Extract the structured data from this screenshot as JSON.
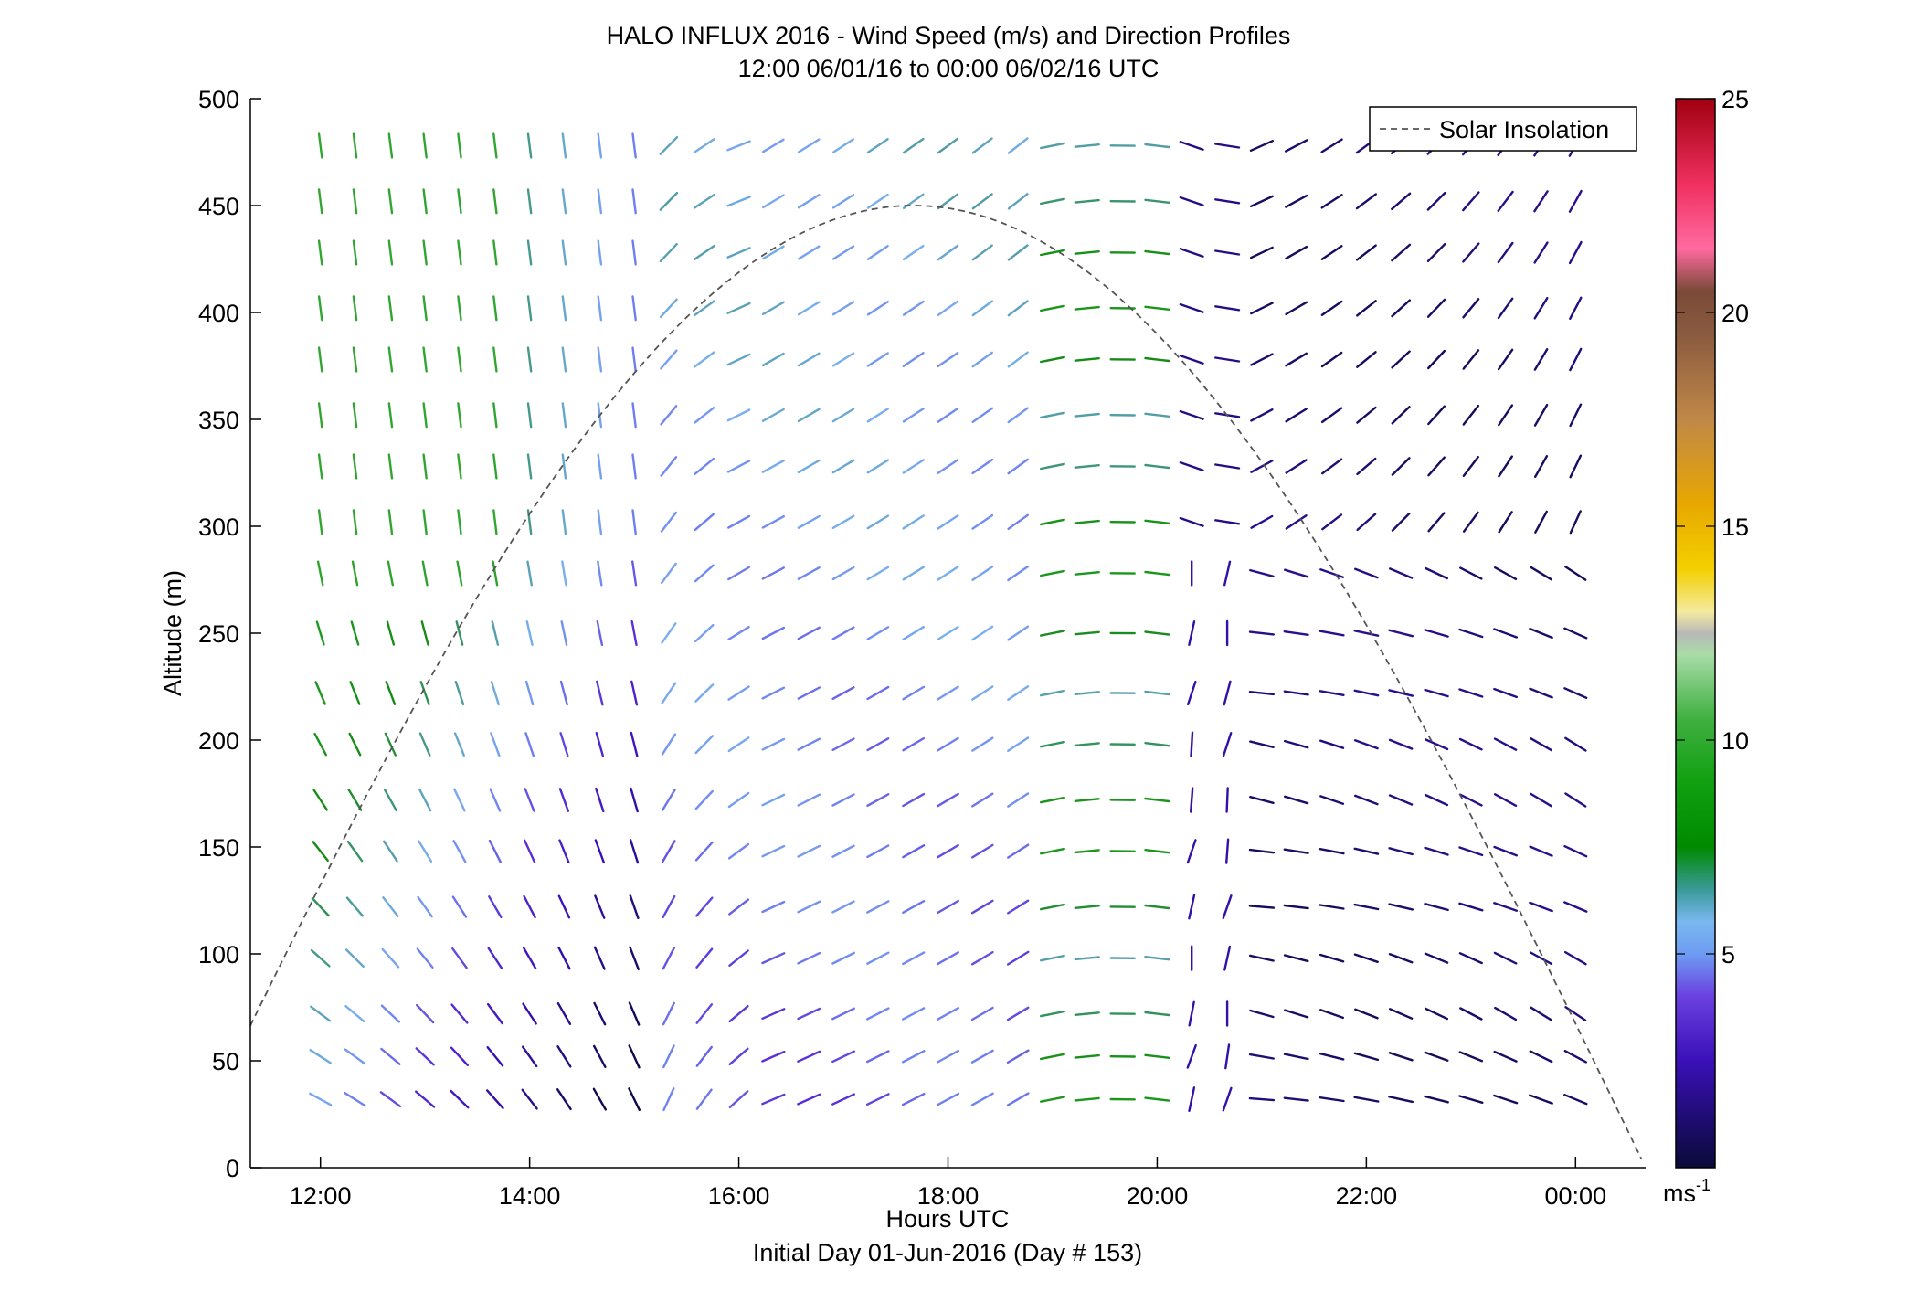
{
  "chart_data": {
    "type": "wind-barb-profile",
    "title": "HALO INFLUX 2016 - Wind Speed (m/s) and Direction Profiles",
    "subtitle": "12:00 06/01/16 to 00:00 06/02/16  UTC",
    "xlabel": "Hours UTC",
    "xlabel2": "Initial Day 01-Jun-2016 (Day # 153)",
    "ylabel": "Altitude (m)",
    "xlim_hours": [
      11.33,
      24.67
    ],
    "ylim": [
      0,
      500
    ],
    "x_ticks": [
      {
        "hour": 12,
        "label": "12:00"
      },
      {
        "hour": 14,
        "label": "14:00"
      },
      {
        "hour": 16,
        "label": "16:00"
      },
      {
        "hour": 18,
        "label": "18:00"
      },
      {
        "hour": 20,
        "label": "20:00"
      },
      {
        "hour": 22,
        "label": "22:00"
      },
      {
        "hour": 24,
        "label": "00:00"
      }
    ],
    "y_ticks": [
      0,
      50,
      100,
      150,
      200,
      250,
      300,
      350,
      400,
      450,
      500
    ],
    "colorbar": {
      "min": 0,
      "max": 25,
      "ticks": [
        5,
        10,
        15,
        20,
        25
      ],
      "unit_base": "ms",
      "unit_exp": "-1"
    },
    "legend": {
      "position": "top-right",
      "entries": [
        {
          "label": "Solar Insolation",
          "style": "dashed",
          "color": "#555555"
        }
      ]
    },
    "solar_insolation": {
      "peak_hour": 17.67,
      "peak_altitude": 450,
      "half_width_hours": 7.0
    },
    "profile_times_hours": [
      12.0,
      12.33,
      12.67,
      13.0,
      13.33,
      13.67,
      14.0,
      14.33,
      14.67,
      15.0,
      15.33,
      15.67,
      16.0,
      16.33,
      16.67,
      17.0,
      17.33,
      17.67,
      18.0,
      18.33,
      18.67,
      19.0,
      19.33,
      19.67,
      20.0,
      20.33,
      20.67,
      21.0,
      21.33,
      21.67,
      22.0,
      22.33,
      22.67,
      23.0,
      23.33,
      23.67,
      24.0
    ],
    "profile_altitudes": [
      32,
      52,
      72,
      98,
      122,
      148,
      172,
      198,
      222,
      250,
      278,
      302,
      328,
      352,
      378,
      402,
      428,
      452,
      478
    ],
    "wind_note": "Arrows show wind direction (line orientation) and speed (color, m/s) at each time/altitude; values estimated from the figure."
  }
}
